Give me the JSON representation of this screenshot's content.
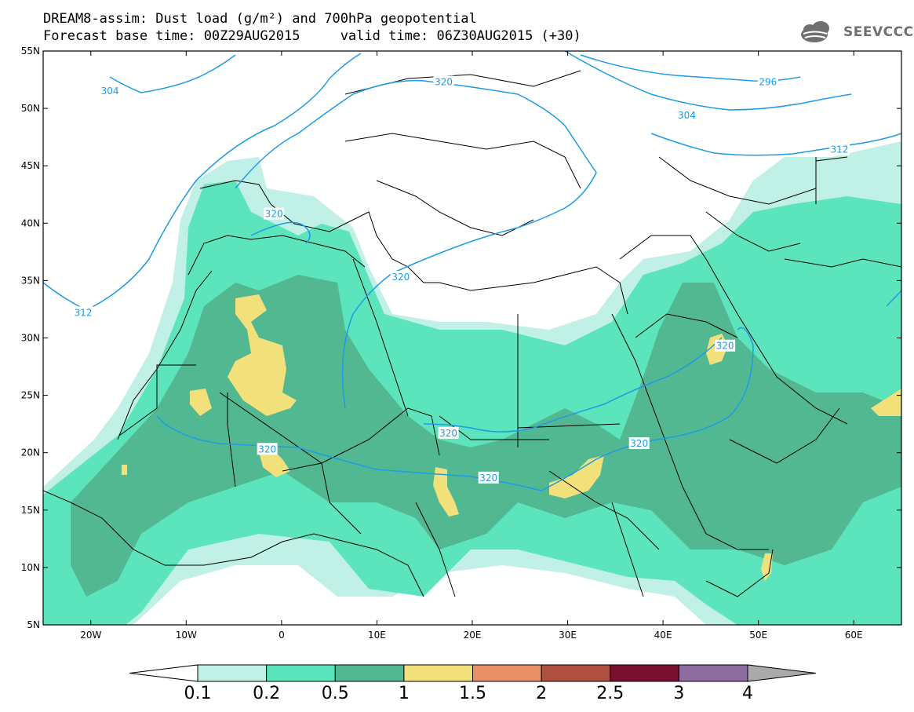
{
  "title": {
    "line1": "DREAM8-assim: Dust load (g/m²) and 700hPa geopotential",
    "line2": "Forecast base time: 00Z29AUG2015     valid time: 06Z30AUG2015 (+30)"
  },
  "logo": {
    "text": "SEEVCCC",
    "icon": "cloud-icon"
  },
  "axes": {
    "lat_ticks": [
      "55N",
      "50N",
      "45N",
      "40N",
      "35N",
      "30N",
      "25N",
      "20N",
      "15N",
      "10N",
      "5N"
    ],
    "lon_ticks": [
      "20W",
      "10W",
      "0",
      "10E",
      "20E",
      "30E",
      "40E",
      "50E",
      "60E"
    ],
    "lon_range": [
      -25,
      65
    ],
    "lat_range": [
      5,
      55
    ]
  },
  "colorbar": {
    "labels": [
      "0.1",
      "0.2",
      "0.5",
      "1",
      "1.5",
      "2",
      "2.5",
      "3",
      "4"
    ],
    "colors": [
      "#ffffff",
      "#c0f0e6",
      "#5ce4bc",
      "#52b892",
      "#f2e17a",
      "#e89068",
      "#b05040",
      "#7a1030",
      "#8e6ea0",
      "#aaaaaa"
    ]
  },
  "contours": {
    "color": "#1e9be6",
    "labels": [
      {
        "text": "304",
        "lon": -18,
        "lat": 51.5
      },
      {
        "text": "320",
        "lon": 17,
        "lat": 52.3
      },
      {
        "text": "296",
        "lon": 51,
        "lat": 52.3
      },
      {
        "text": "304",
        "lon": 42.5,
        "lat": 49.4
      },
      {
        "text": "312",
        "lon": 58.5,
        "lat": 46.4
      },
      {
        "text": "320",
        "lon": -0.8,
        "lat": 40.8
      },
      {
        "text": "320",
        "lon": 12.5,
        "lat": 35.3
      },
      {
        "text": "312",
        "lon": -20.8,
        "lat": 32.2
      },
      {
        "text": "320",
        "lon": 46.5,
        "lat": 29.3
      },
      {
        "text": "320",
        "lon": 17.5,
        "lat": 21.7
      },
      {
        "text": "320",
        "lon": -1.5,
        "lat": 20.3
      },
      {
        "text": "320",
        "lon": 37.5,
        "lat": 20.8
      },
      {
        "text": "320",
        "lon": 21.7,
        "lat": 17.8
      }
    ]
  }
}
